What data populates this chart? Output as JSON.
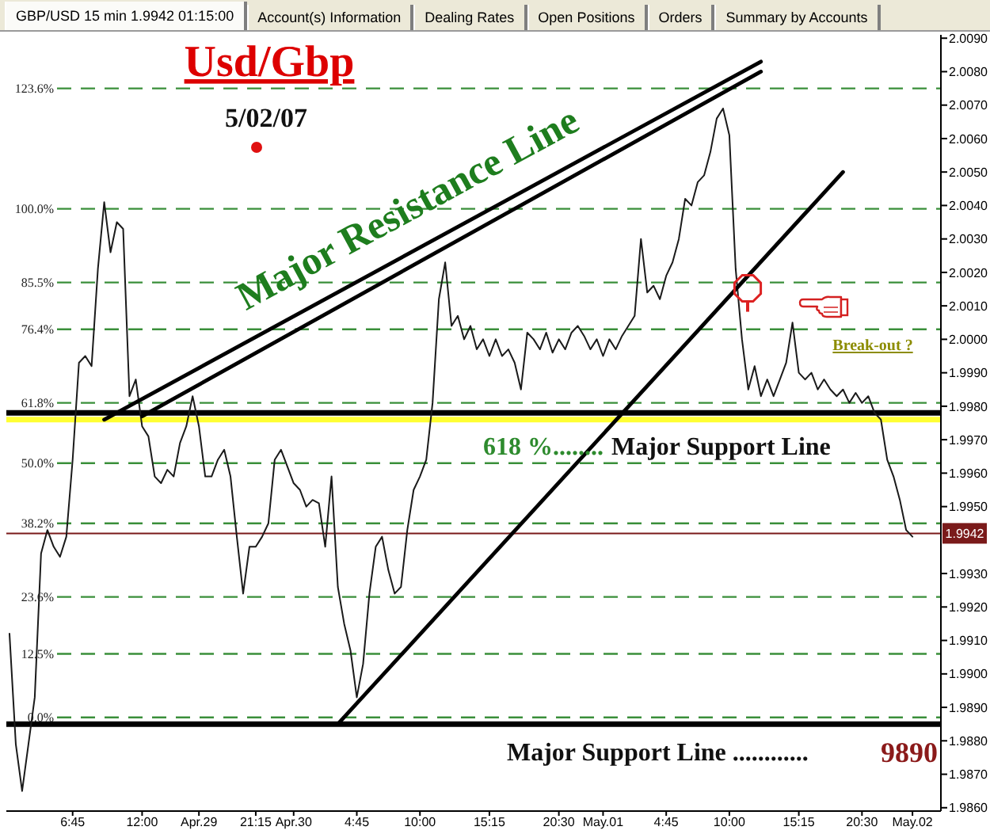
{
  "chart_data": {
    "type": "line",
    "title": "Usd/Gbp",
    "subtitle": "5/02/07",
    "categories": [
      null,
      null,
      null,
      null,
      null,
      null,
      null,
      null,
      null,
      null,
      "6:45",
      null,
      null,
      null,
      null,
      null,
      null,
      null,
      null,
      null,
      null,
      "12:00",
      null,
      null,
      null,
      null,
      null,
      null,
      null,
      null,
      "Apr.29",
      null,
      null,
      null,
      null,
      null,
      null,
      null,
      null,
      "21:15",
      null,
      null,
      null,
      null,
      null,
      "Apr.30",
      null,
      null,
      null,
      null,
      null,
      null,
      null,
      null,
      null,
      "4:45",
      null,
      null,
      null,
      null,
      null,
      null,
      null,
      null,
      null,
      "10:00",
      null,
      null,
      null,
      null,
      null,
      null,
      null,
      null,
      null,
      null,
      "15:15",
      null,
      null,
      null,
      null,
      null,
      null,
      null,
      null,
      null,
      null,
      "20:30",
      null,
      null,
      null,
      null,
      null,
      null,
      "May.01",
      null,
      null,
      null,
      null,
      null,
      null,
      null,
      null,
      null,
      "4:45",
      null,
      null,
      null,
      null,
      null,
      null,
      null,
      null,
      null,
      "10:00",
      null,
      null,
      null,
      null,
      null,
      null,
      null,
      null,
      null,
      null,
      "15:15",
      null,
      null,
      null,
      null,
      null,
      null,
      null,
      null,
      null,
      "20:30",
      null,
      null,
      null,
      null,
      null,
      null,
      null,
      "May.02",
      null,
      null,
      null,
      null
    ],
    "series": [
      {
        "color": "#1a1a1a",
        "values": [
          1.9912,
          1.9879,
          1.9865,
          1.9879,
          1.9893,
          1.9936,
          1.9943,
          1.9938,
          1.9935,
          1.9941,
          1.9964,
          1.9993,
          1.9995,
          1.9992,
          2.0021,
          2.0041,
          2.0026,
          2.0035,
          2.0033,
          1.9983,
          1.9988,
          1.9974,
          1.9971,
          1.9959,
          1.9957,
          1.9961,
          1.9959,
          1.9969,
          1.9974,
          1.9983,
          1.9974,
          1.9959,
          1.9959,
          1.9964,
          1.9967,
          1.9959,
          1.9941,
          1.9924,
          1.9938,
          1.9938,
          1.9941,
          1.9945,
          1.9964,
          1.9967,
          1.9962,
          1.9957,
          1.9955,
          1.995,
          1.9952,
          1.9951,
          1.9938,
          1.9959,
          1.9926,
          1.9915,
          1.9907,
          1.9893,
          1.9903,
          1.9924,
          1.9938,
          1.9941,
          1.9931,
          1.9924,
          1.9926,
          1.9943,
          1.9955,
          1.9959,
          1.9964,
          1.9981,
          2.0012,
          2.0023,
          2.0004,
          2.0007,
          2.0,
          2.0004,
          1.9997,
          2.0,
          1.9995,
          2.0,
          1.9995,
          1.9997,
          1.9993,
          1.9985,
          2.0002,
          2.0,
          1.9997,
          2.0002,
          1.9996,
          2.0,
          1.9997,
          2.0002,
          2.0004,
          2.0001,
          1.9997,
          2.0,
          1.9995,
          2.0,
          1.9997,
          2.0001,
          2.0004,
          2.0007,
          2.003,
          2.0014,
          2.0016,
          2.0012,
          2.0019,
          2.0023,
          2.003,
          2.0042,
          2.004,
          2.0047,
          2.0049,
          2.0056,
          2.0066,
          2.0069,
          2.0061,
          2.0021,
          2.0,
          1.9985,
          1.9992,
          1.9983,
          1.9988,
          1.9983,
          1.9988,
          1.9993,
          2.0005,
          1.999,
          1.9988,
          1.999,
          1.9985,
          1.9988,
          1.9985,
          1.9983,
          1.9985,
          1.9981,
          1.9984,
          1.9981,
          1.9983,
          1.9978,
          1.9976,
          1.9964,
          1.9959,
          1.9952,
          1.9943,
          1.9941,
          null,
          null,
          null,
          null
        ]
      },
      {
        "color": "#000000",
        "values": [
          null,
          null,
          null,
          null,
          null,
          null,
          null,
          null,
          null,
          null,
          null,
          null,
          null,
          null,
          null,
          1.9976,
          null,
          null,
          null,
          null,
          null,
          null,
          null,
          null,
          null,
          null,
          null,
          null,
          null,
          null,
          null,
          null,
          null,
          null,
          null,
          null,
          null,
          null,
          null,
          null,
          null,
          null,
          null,
          null,
          null,
          null,
          null,
          null,
          null,
          null,
          null,
          null,
          null,
          null,
          null,
          null,
          null,
          null,
          null,
          null,
          null,
          null,
          null,
          null,
          null,
          null,
          null,
          null,
          null,
          null,
          null,
          null,
          null,
          null,
          null,
          null,
          null,
          null,
          null,
          null,
          null,
          null,
          null,
          null,
          null,
          null,
          null,
          null,
          null,
          null,
          null,
          null,
          null,
          null,
          null,
          null,
          null,
          null,
          null,
          null,
          null,
          null,
          null,
          null,
          null,
          null,
          null,
          null,
          null,
          null,
          null,
          null,
          null,
          null,
          null,
          null,
          null,
          null,
          null,
          2.0083,
          null,
          null,
          null,
          null,
          null,
          null,
          null,
          null,
          null,
          null,
          null,
          null,
          null,
          null,
          null,
          null,
          null,
          null,
          null,
          null,
          null,
          null,
          null,
          null,
          null,
          null,
          null,
          null
        ]
      },
      {
        "color": "#000000",
        "values": [
          null,
          null,
          null,
          null,
          null,
          null,
          null,
          null,
          null,
          null,
          null,
          null,
          null,
          null,
          null,
          null,
          null,
          null,
          null,
          null,
          null,
          1.9977,
          null,
          null,
          null,
          null,
          null,
          null,
          null,
          null,
          null,
          null,
          null,
          null,
          null,
          null,
          null,
          null,
          null,
          null,
          null,
          null,
          null,
          null,
          null,
          null,
          null,
          null,
          null,
          null,
          null,
          null,
          null,
          null,
          null,
          null,
          null,
          null,
          null,
          null,
          null,
          null,
          null,
          null,
          null,
          null,
          null,
          null,
          null,
          null,
          null,
          null,
          null,
          null,
          null,
          null,
          null,
          null,
          null,
          null,
          null,
          null,
          null,
          null,
          null,
          null,
          null,
          null,
          null,
          null,
          null,
          null,
          null,
          null,
          null,
          null,
          null,
          null,
          null,
          null,
          null,
          null,
          null,
          null,
          null,
          null,
          null,
          null,
          null,
          null,
          null,
          null,
          null,
          null,
          null,
          null,
          null,
          null,
          null,
          2.008,
          null,
          null,
          null,
          null,
          null,
          null,
          null,
          null,
          null,
          null,
          null,
          null,
          null,
          null,
          null,
          null,
          null,
          null,
          null,
          null,
          null,
          null,
          null,
          null,
          null,
          null,
          null,
          null
        ]
      },
      {
        "color": "#000000",
        "values": [
          null,
          null,
          null,
          null,
          null,
          null,
          null,
          null,
          null,
          null,
          null,
          null,
          null,
          null,
          null,
          null,
          null,
          null,
          null,
          null,
          null,
          null,
          null,
          null,
          null,
          null,
          null,
          null,
          null,
          null,
          null,
          null,
          null,
          null,
          null,
          null,
          null,
          null,
          null,
          null,
          null,
          null,
          null,
          null,
          null,
          null,
          null,
          null,
          null,
          null,
          null,
          null,
          1.9885,
          null,
          null,
          null,
          null,
          null,
          null,
          null,
          null,
          null,
          null,
          null,
          null,
          null,
          null,
          null,
          null,
          null,
          null,
          null,
          null,
          null,
          null,
          null,
          null,
          null,
          null,
          null,
          null,
          null,
          null,
          null,
          null,
          null,
          null,
          null,
          null,
          null,
          null,
          null,
          null,
          null,
          null,
          null,
          null,
          null,
          null,
          null,
          null,
          null,
          null,
          null,
          null,
          null,
          null,
          null,
          null,
          null,
          null,
          null,
          null,
          null,
          null,
          null,
          null,
          null,
          null,
          null,
          null,
          null,
          null,
          null,
          null,
          null,
          null,
          null,
          null,
          null,
          null,
          null,
          2.005,
          null,
          null,
          null,
          null,
          null,
          null,
          null,
          null,
          null,
          null,
          null,
          null,
          null,
          null,
          null
        ]
      }
    ],
    "ylim": [
      1.9859,
      2.0091
    ],
    "yticks": [
      {
        "value": 1.986,
        "label": "1.9860"
      },
      {
        "value": 1.987,
        "label": "1.9870"
      },
      {
        "value": 1.988,
        "label": "1.9880"
      },
      {
        "value": 1.989,
        "label": "1.9890"
      },
      {
        "value": 1.99,
        "label": "1.9900"
      },
      {
        "value": 1.991,
        "label": "1.9910"
      },
      {
        "value": 1.992,
        "label": "1.9920"
      },
      {
        "value": 1.993,
        "label": "1.9930"
      },
      {
        "value": 1.995,
        "label": "1.9950"
      },
      {
        "value": 1.996,
        "label": "1.9960"
      },
      {
        "value": 1.997,
        "label": "1.9970"
      },
      {
        "value": 1.998,
        "label": "1.9980"
      },
      {
        "value": 1.999,
        "label": "1.9990"
      },
      {
        "value": 2.0,
        "label": "2.0000"
      },
      {
        "value": 2.001,
        "label": "2.0010"
      },
      {
        "value": 2.002,
        "label": "2.0020"
      },
      {
        "value": 2.003,
        "label": "2.0030"
      },
      {
        "value": 2.004,
        "label": "2.0040"
      },
      {
        "value": 2.005,
        "label": "2.0050"
      },
      {
        "value": 2.006,
        "label": "2.0060"
      },
      {
        "value": 2.007,
        "label": "2.0070"
      },
      {
        "value": 2.008,
        "label": "2.0080"
      },
      {
        "value": 2.009,
        "label": "2.0090"
      }
    ],
    "ref_lines": [
      {
        "axis": "y",
        "value": 2.0075,
        "color": "#3a8f3a",
        "line_style": "dashed"
      },
      {
        "axis": "y",
        "value": 2.0039,
        "color": "#3a8f3a",
        "line_style": "dashed"
      },
      {
        "axis": "y",
        "value": 2.0017,
        "color": "#3a8f3a",
        "line_style": "dashed"
      },
      {
        "axis": "y",
        "value": 2.0003,
        "color": "#3a8f3a",
        "line_style": "dashed"
      },
      {
        "axis": "y",
        "value": 1.9981,
        "color": "#3a8f3a",
        "line_style": "dashed"
      },
      {
        "axis": "y",
        "value": 1.9963,
        "color": "#3a8f3a",
        "line_style": "dashed"
      },
      {
        "axis": "y",
        "value": 1.9945,
        "color": "#3a8f3a",
        "line_style": "dashed"
      },
      {
        "axis": "y",
        "value": 1.9923,
        "color": "#3a8f3a",
        "line_style": "dashed"
      },
      {
        "axis": "y",
        "value": 1.9906,
        "color": "#3a8f3a",
        "line_style": "dashed"
      },
      {
        "axis": "y",
        "value": 1.9887,
        "color": "#3a8f3a",
        "line_style": "dashed"
      },
      {
        "axis": "y",
        "value": 1.9976,
        "color": "#ffff33",
        "line_style": "solid"
      },
      {
        "axis": "y",
        "value": 1.9978,
        "color": "#000000",
        "line_style": "solid"
      },
      {
        "axis": "y",
        "value": 1.9885,
        "color": "#000000",
        "line_style": "solid"
      },
      {
        "axis": "y",
        "value": 1.9942,
        "label": "1.9942",
        "color": "#7a1a1a",
        "line_style": "solid"
      }
    ],
    "annotations": [
      "GBP/USD 15 min 1.9942 01:15:00",
      "Account(s) Information",
      "Dealing Rates",
      "Open Positions",
      "Orders",
      "Summary by Accounts",
      "123.6%",
      "100.0%",
      "85.5%",
      "76.4%",
      "61.8%",
      "50.0%",
      "38.2%",
      "23.6%",
      "12.5%",
      "0.0%",
      "Major Resistance Line",
      {
        "text": "618 %........",
        "y": 1.9976
      },
      {
        "text": "Major Support Line",
        "y": 1.9976
      },
      {
        "text": "Major Support Line ............",
        "y": 1.9885
      },
      {
        "text": "9890",
        "y": 1.9885
      },
      "Break-out ?"
    ]
  }
}
